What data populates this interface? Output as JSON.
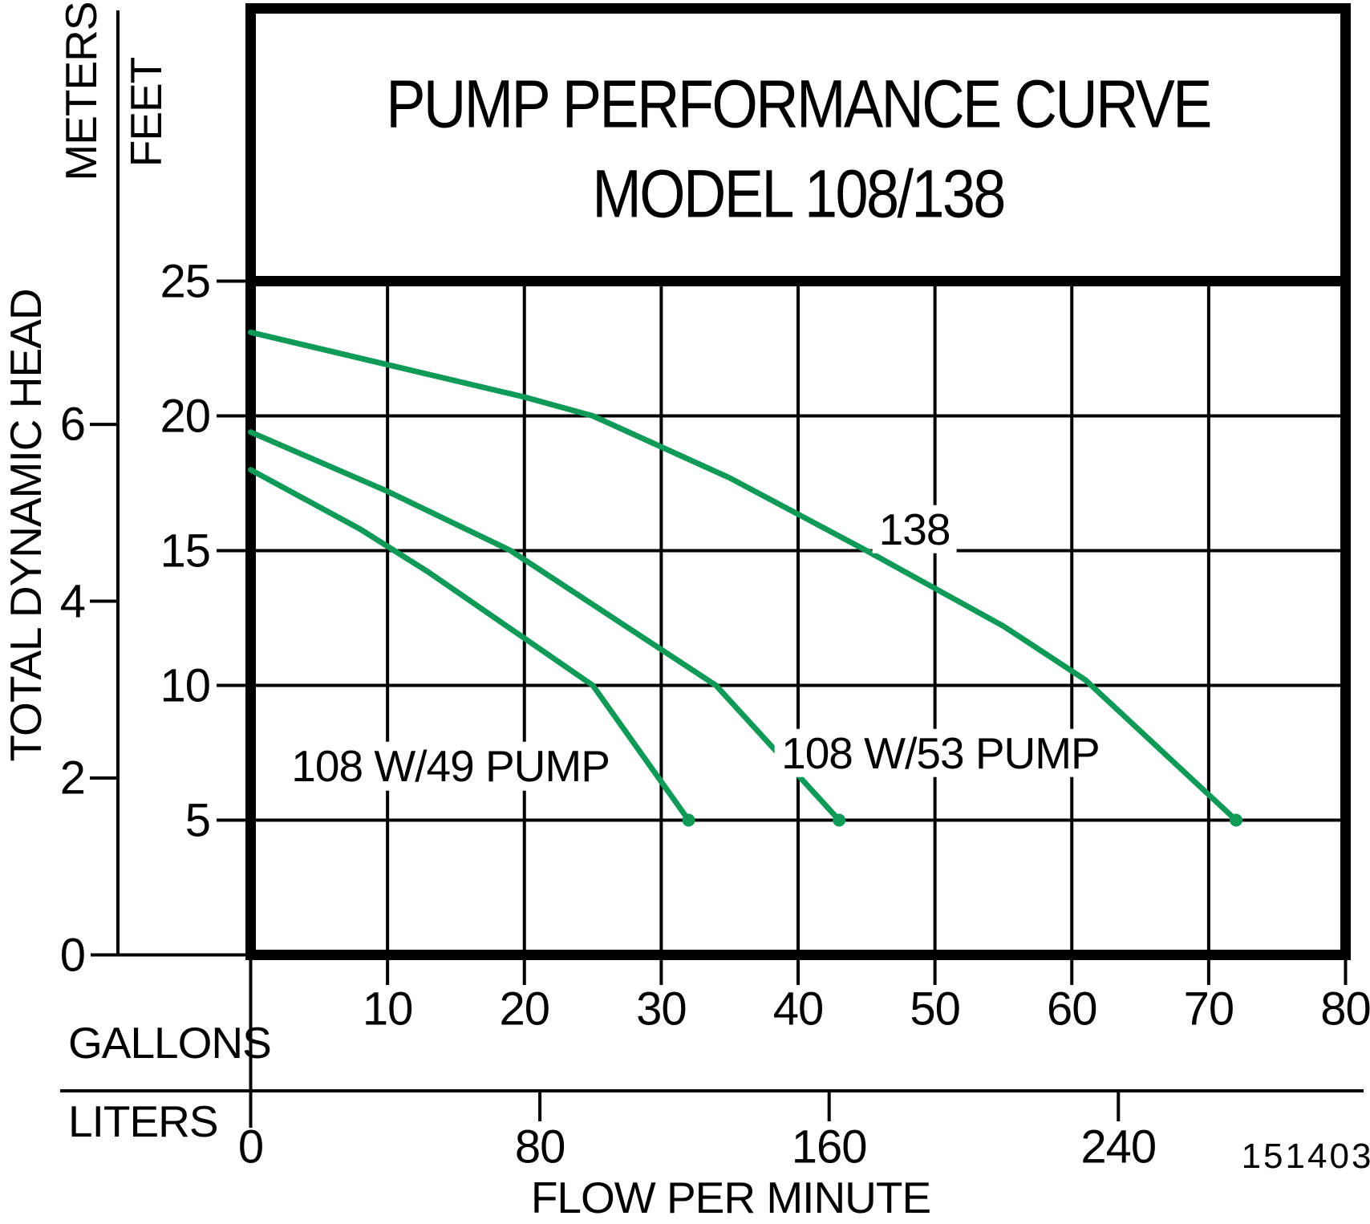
{
  "title": {
    "line1": "PUMP PERFORMANCE CURVE",
    "line2": "MODEL 108/138"
  },
  "y_axis": {
    "label": "TOTAL DYNAMIC HEAD",
    "meters_label": "METERS",
    "feet_label": "FEET",
    "meters_ticks": [
      6,
      4,
      2,
      0
    ],
    "feet_ticks": [
      25,
      20,
      15,
      10,
      5
    ],
    "feet_range": [
      0,
      25
    ]
  },
  "x_axis": {
    "label": "FLOW PER MINUTE",
    "gallons_label": "GALLONS",
    "liters_label": "LITERS",
    "gallons_ticks": [
      10,
      20,
      30,
      40,
      50,
      60,
      70,
      80
    ],
    "liters_ticks": [
      0,
      80,
      160,
      240
    ],
    "gallons_range": [
      0,
      80
    ]
  },
  "footer_code": "151403",
  "colors": {
    "curve_green": "#109a58",
    "ink": "#000000",
    "background": "#ffffff"
  },
  "chart_data": {
    "type": "line",
    "xlabel": "FLOW PER MINUTE",
    "ylabel": "TOTAL DYNAMIC HEAD",
    "x_units": [
      "GALLONS",
      "LITERS"
    ],
    "y_units": [
      "FEET",
      "METERS"
    ],
    "xlim_gallons": [
      0,
      80
    ],
    "ylim_feet": [
      0,
      25
    ],
    "grid": true,
    "series": [
      {
        "name": "138",
        "units": "gallons_vs_feet",
        "points": [
          [
            0,
            23.1
          ],
          [
            10,
            21.9
          ],
          [
            20,
            20.7
          ],
          [
            25,
            20.0
          ],
          [
            35,
            17.7
          ],
          [
            45,
            15.0
          ],
          [
            55,
            12.2
          ],
          [
            61,
            10.2
          ],
          [
            72,
            5.0
          ]
        ],
        "label_pos_gallons_feet": [
          48.5,
          15.8
        ],
        "end_dot": true
      },
      {
        "name": "108 W/53 PUMP",
        "units": "gallons_vs_feet",
        "points": [
          [
            0,
            19.4
          ],
          [
            10,
            17.2
          ],
          [
            19,
            15.0
          ],
          [
            34,
            10.0
          ],
          [
            43,
            5.0
          ]
        ],
        "label_pos_gallons_feet": [
          50.4,
          7.5
        ],
        "end_dot": true
      },
      {
        "name": "108 W/49 PUMP",
        "units": "gallons_vs_feet",
        "points": [
          [
            0,
            18.0
          ],
          [
            8,
            15.8
          ],
          [
            13,
            14.2
          ],
          [
            25,
            10.0
          ],
          [
            32,
            5.0
          ]
        ],
        "label_pos_gallons_feet": [
          14.6,
          7.0
        ],
        "end_dot": true
      }
    ]
  }
}
